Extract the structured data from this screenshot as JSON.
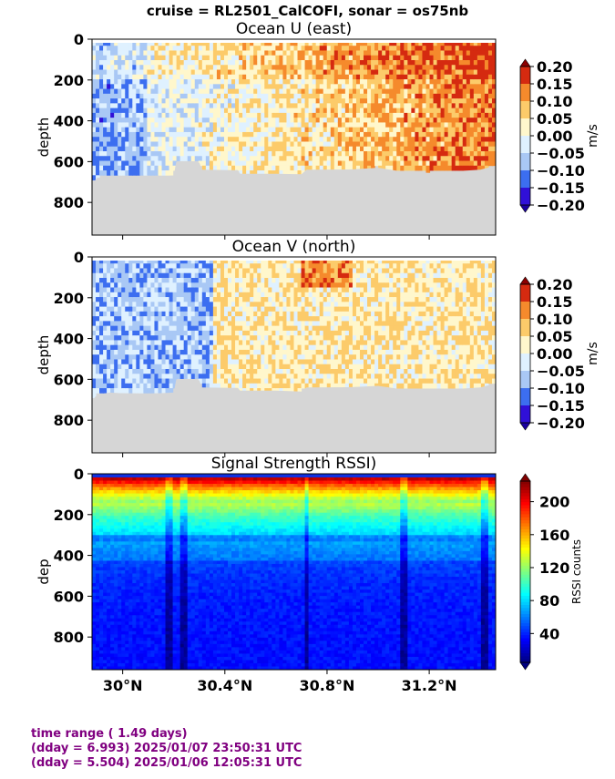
{
  "suptitle": "cruise = RL2501_CalCOFI,  sonar = os75nb",
  "chart_data": [
    {
      "type": "heatmap",
      "title": "Ocean U (east)",
      "ylabel": "depth",
      "yticks": [
        0,
        200,
        400,
        600,
        800
      ],
      "ylim": [
        960,
        0
      ],
      "xlim": [
        29.88,
        31.46
      ],
      "colorbar": {
        "label": "m/s",
        "ticks": [
          "0.20",
          "0.15",
          "0.10",
          "0.05",
          "0.00",
          "−0.05",
          "−0.10",
          "−0.15",
          "−0.20"
        ],
        "range": [
          -0.2,
          0.2
        ]
      },
      "bottom_depth_profile": [
        [
          29.88,
          710
        ],
        [
          29.9,
          680
        ],
        [
          29.95,
          670
        ],
        [
          30.0,
          672
        ],
        [
          30.1,
          675
        ],
        [
          30.2,
          668
        ],
        [
          30.21,
          600
        ],
        [
          30.3,
          605
        ],
        [
          30.31,
          640
        ],
        [
          30.45,
          642
        ],
        [
          30.46,
          660
        ],
        [
          30.6,
          660
        ],
        [
          30.7,
          662
        ],
        [
          30.72,
          640
        ],
        [
          30.9,
          638
        ],
        [
          31.0,
          630
        ],
        [
          31.1,
          650
        ],
        [
          31.2,
          655
        ],
        [
          31.3,
          648
        ],
        [
          31.4,
          640
        ],
        [
          31.46,
          620
        ]
      ]
    },
    {
      "type": "heatmap",
      "title": "Ocean V (north)",
      "ylabel": "depth",
      "yticks": [
        0,
        200,
        400,
        600,
        800
      ],
      "ylim": [
        960,
        0
      ],
      "xlim": [
        29.88,
        31.46
      ],
      "colorbar": {
        "label": "m/s",
        "ticks": [
          "0.20",
          "0.15",
          "0.10",
          "0.05",
          "0.00",
          "−0.05",
          "−0.10",
          "−0.15",
          "−0.20"
        ],
        "range": [
          -0.2,
          0.2
        ]
      },
      "bottom_depth_profile": [
        [
          29.88,
          705
        ],
        [
          29.9,
          675
        ],
        [
          29.95,
          665
        ],
        [
          30.0,
          668
        ],
        [
          30.1,
          670
        ],
        [
          30.2,
          665
        ],
        [
          30.21,
          600
        ],
        [
          30.3,
          605
        ],
        [
          30.31,
          640
        ],
        [
          30.45,
          642
        ],
        [
          30.46,
          655
        ],
        [
          30.6,
          655
        ],
        [
          30.7,
          660
        ],
        [
          30.72,
          640
        ],
        [
          30.9,
          638
        ],
        [
          31.0,
          632
        ],
        [
          31.1,
          650
        ],
        [
          31.2,
          652
        ],
        [
          31.3,
          648
        ],
        [
          31.4,
          640
        ],
        [
          31.46,
          620
        ]
      ]
    },
    {
      "type": "heatmap",
      "title": "Signal Strength RSSI)",
      "ylabel": "dep",
      "yticks": [
        0,
        200,
        400,
        600,
        800
      ],
      "ylim": [
        960,
        0
      ],
      "xlim": [
        29.88,
        31.46
      ],
      "xticks": [
        30.0,
        30.4,
        30.8,
        31.2
      ],
      "xticklabels": [
        "30°N",
        "30.4°N",
        "30.8°N",
        "31.2°N"
      ],
      "colorbar": {
        "label": "RSSI counts",
        "ticks": [
          "200",
          "160",
          "120",
          "80",
          "40"
        ],
        "range": [
          5,
          225
        ]
      },
      "dark_stripes_lat": [
        30.18,
        30.24,
        30.72,
        31.1,
        31.42
      ]
    }
  ],
  "footer": {
    "line1": "time range ( 1.49 days)",
    "line2": "(dday = 6.993) 2025/01/07 23:50:31 UTC",
    "line3": "(dday = 5.504) 2025/01/06 12:05:31 UTC"
  }
}
